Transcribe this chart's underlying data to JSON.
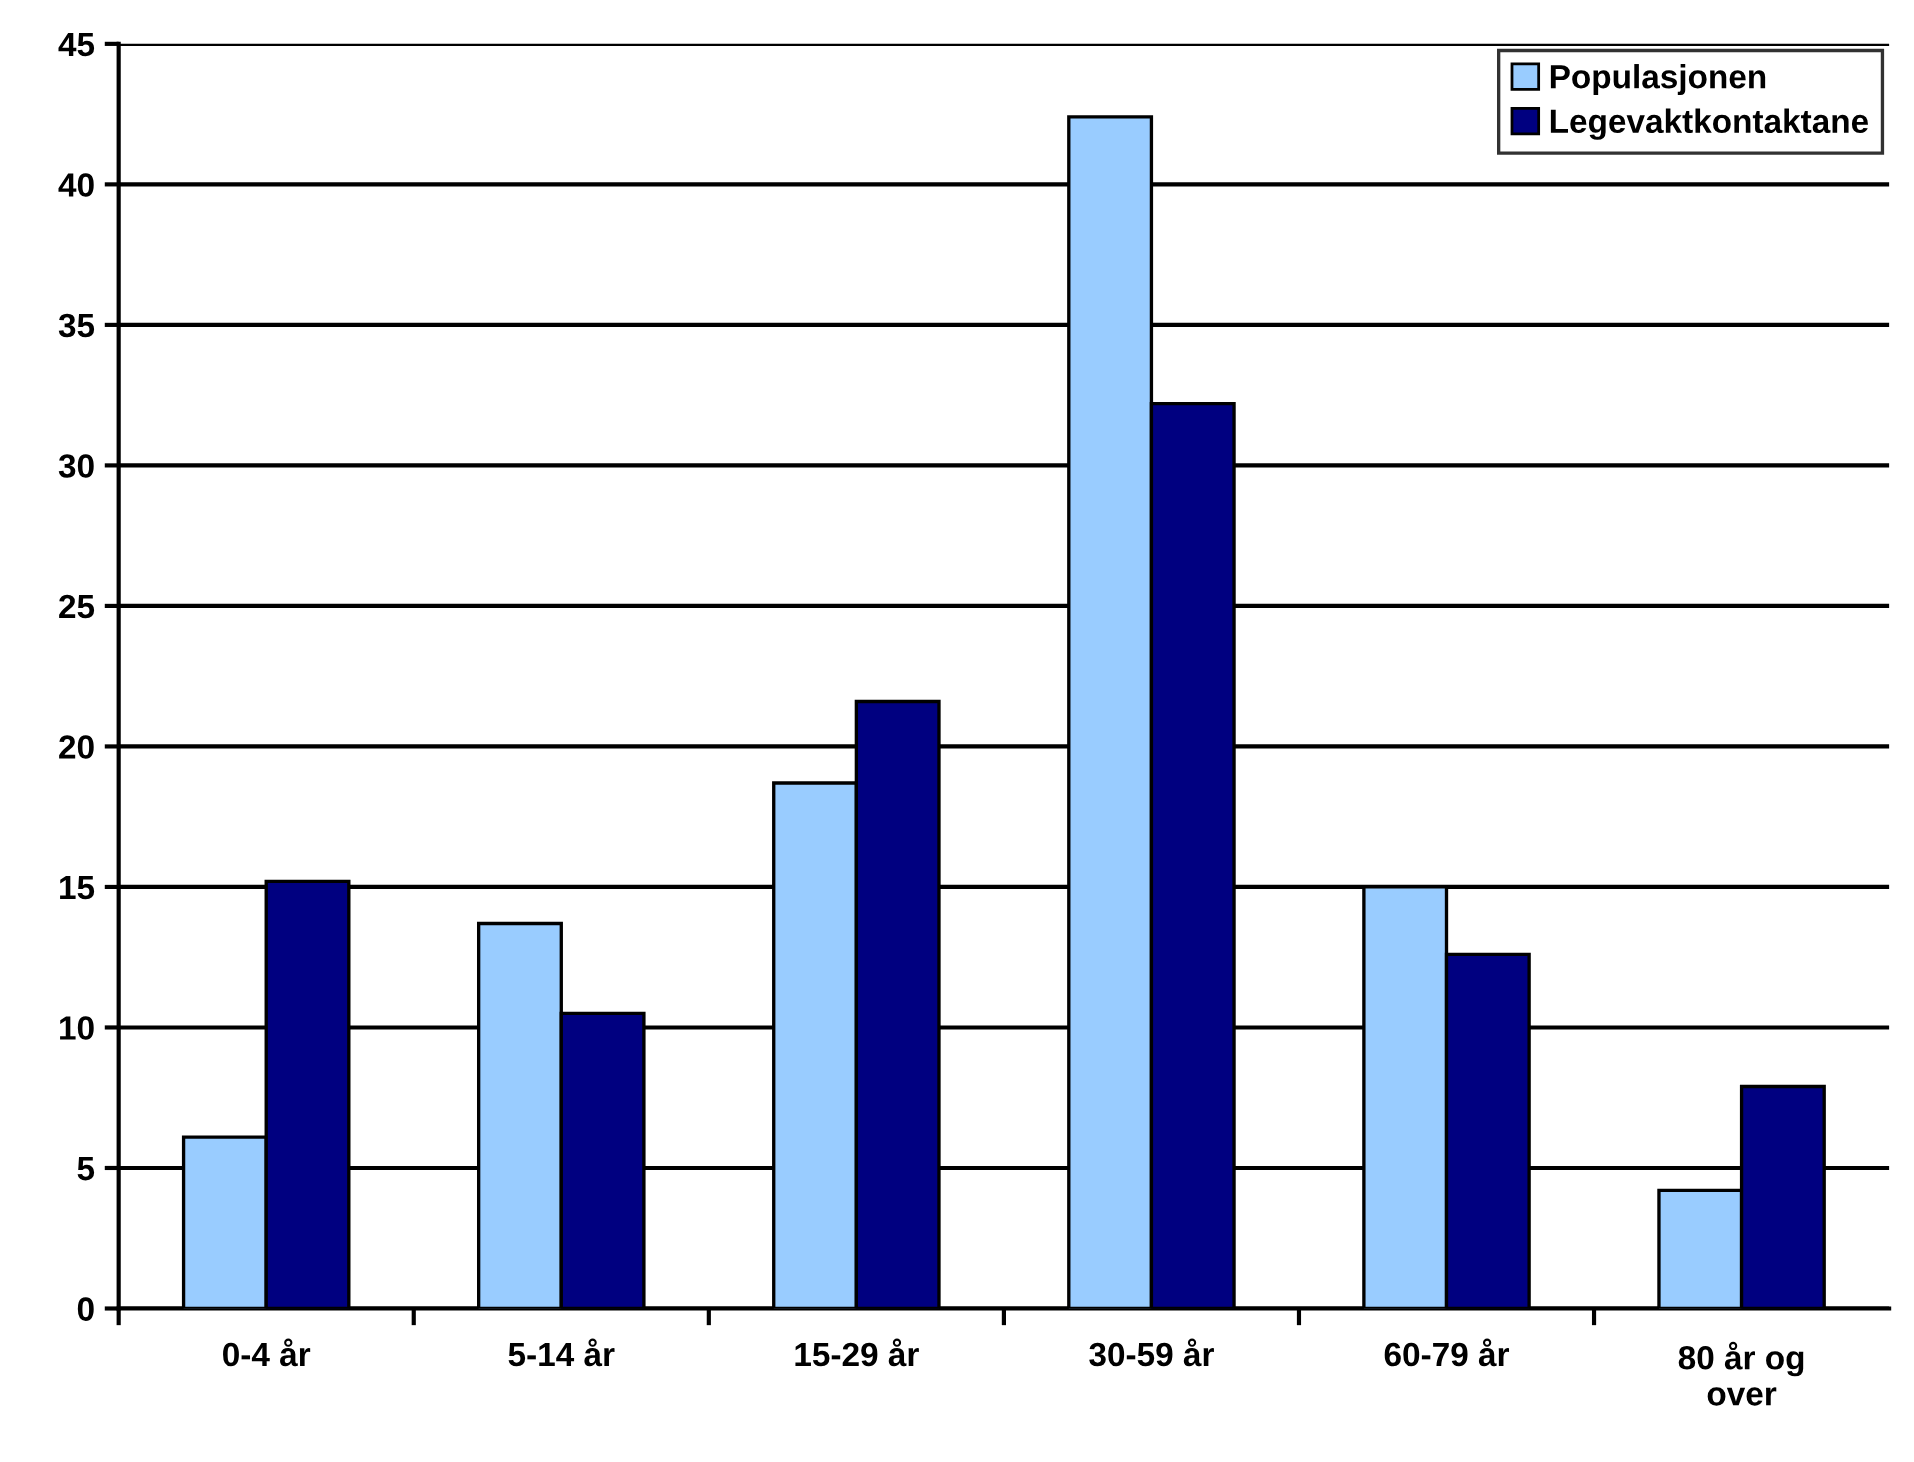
{
  "chart_data": {
    "type": "bar",
    "categories": [
      "0-4 år",
      "5-14 år",
      "15-29 år",
      "30-59 år",
      "60-79 år",
      "80 år og\nover"
    ],
    "series": [
      {
        "name": "Populasjonen",
        "color": "#99ccff",
        "values": [
          6.1,
          13.7,
          18.7,
          42.4,
          15.0,
          4.2
        ]
      },
      {
        "name": "Legevaktkontaktane",
        "color": "#000080",
        "values": [
          15.2,
          10.5,
          21.6,
          32.2,
          12.6,
          7.9
        ]
      }
    ],
    "ylim": [
      0,
      45
    ],
    "yticks": [
      0,
      5,
      10,
      15,
      20,
      25,
      30,
      35,
      40,
      45
    ],
    "grid": "y",
    "legend": "top right"
  }
}
